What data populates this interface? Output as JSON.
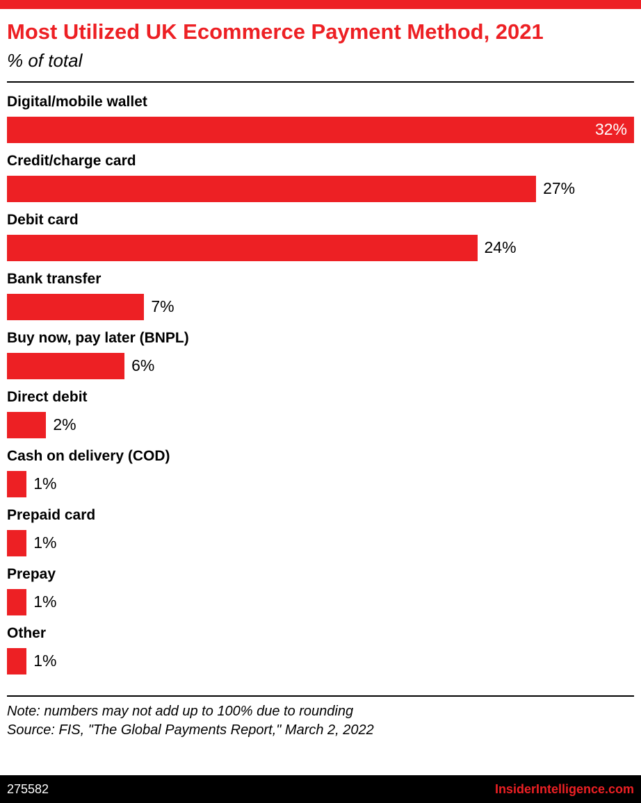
{
  "colors": {
    "accent": "#ed2024",
    "footer_bg": "#000000",
    "bar_color": "#ed2024"
  },
  "header": {
    "title": "Most Utilized UK Ecommerce Payment Method, 2021",
    "subtitle": "% of total"
  },
  "chart_data": {
    "type": "bar",
    "orientation": "horizontal",
    "title": "Most Utilized UK Ecommerce Payment Method, 2021",
    "subtitle": "% of total",
    "xlabel": "",
    "ylabel": "",
    "xlim": [
      0,
      32
    ],
    "grid": false,
    "legend": false,
    "bar_color": "#ed2024",
    "categories": [
      "Digital/mobile wallet",
      "Credit/charge card",
      "Debit card",
      "Bank transfer",
      "Buy now, pay later (BNPL)",
      "Direct debit",
      "Cash on delivery (COD)",
      "Prepaid card",
      "Prepay",
      "Other"
    ],
    "values": [
      32,
      27,
      24,
      7,
      6,
      2,
      1,
      1,
      1,
      1
    ],
    "value_labels": [
      "32%",
      "27%",
      "24%",
      "7%",
      "6%",
      "2%",
      "1%",
      "1%",
      "1%",
      "1%"
    ]
  },
  "footer": {
    "note": "Note: numbers may not add up to 100% due to rounding",
    "source": "Source: FIS, \"The Global Payments Report,\" March 2, 2022",
    "chart_id": "275582",
    "brand": "InsiderIntelligence.com"
  }
}
